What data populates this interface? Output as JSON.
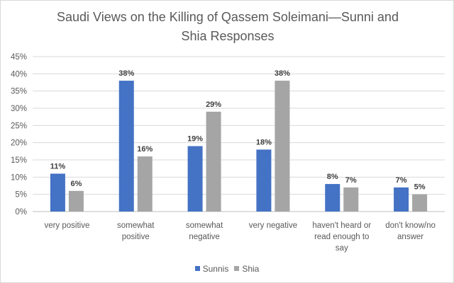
{
  "chart_data": {
    "type": "bar",
    "title": "Saudi Views on the Killing of Qassem Soleimani—Sunni and Shia Responses",
    "categories": [
      [
        "very positive"
      ],
      [
        "somewhat",
        "positive"
      ],
      [
        "somewhat",
        "negative"
      ],
      [
        "very negative"
      ],
      [
        "haven't heard or",
        "read enough to",
        "say"
      ],
      [
        "don't know/no",
        "answer"
      ]
    ],
    "series": [
      {
        "name": "Sunnis",
        "values": [
          11,
          38,
          19,
          18,
          8,
          7
        ],
        "color": "#4472c4"
      },
      {
        "name": "Shia",
        "values": [
          6,
          16,
          29,
          38,
          7,
          5
        ],
        "color": "#a5a5a5"
      }
    ],
    "ylim": [
      0,
      45
    ],
    "yticks": [
      "0%",
      "5%",
      "10%",
      "15%",
      "20%",
      "25%",
      "30%",
      "35%",
      "40%",
      "45%"
    ],
    "value_suffix": "%",
    "grid": true,
    "legend_position": "bottom"
  }
}
